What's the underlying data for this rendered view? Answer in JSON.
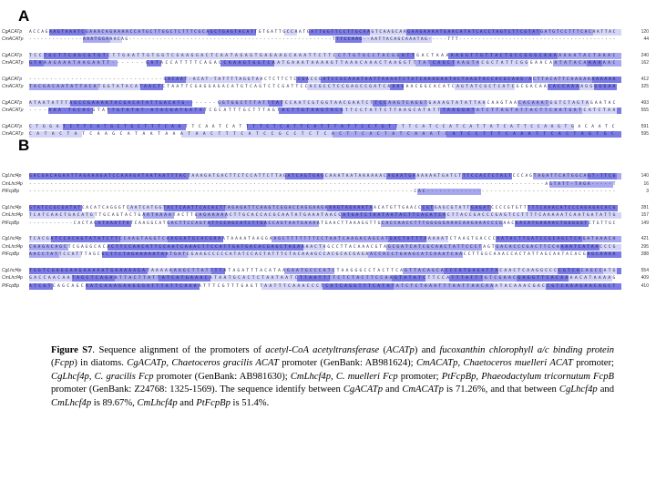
{
  "figure": {
    "panels": [
      {
        "label": "A",
        "groups": [
          {
            "rows": [
              {
                "name": "CgACATp",
                "seq": "ACCAGAAGTAAATCGAAACAGAAAACCATGCTTGGCTCTTTCGCAGCTGAGTACATTGTGATTGCCAATGATTGGTTCCTTGCAAGTCAAGCAAGAAGAAAATGAACATATCACCTAGTCTTCGTATGATGTCCTTTCACAATTAC",
                "num": "120"
              },
              {
                "name": "CmACATp",
                "seq": "--------------AAATGGAAACAG-----------------------------------------------------TTTCCAAG--AATTACAGCAAATAG-----TTT-----------------------------------------",
                "num": "44"
              }
            ]
          },
          {
            "rows": [
              {
                "name": "CgACATp",
                "seq": "TCCTGCTTCAGCGTGTCTTGAATTGTGGTCGAAGGACTCAATAGAGTGAGAAGCAAATTCTTCCTTGTGCCTACGGATTGACTAAAAAGGTTGTTACTGCCGGGCAAAAAAATACTAAAC",
                "num": "240"
              },
              {
                "name": "CmACATp",
                "seq": "GTAAAGAAATAAGAATT-------GATACCATTTTCAGACCAAAGTGGTCAATGAAATAAAAGTTAAACAAACTAAGGTTTATCAGCTAAGTACGCTATTCGGGAACAATATACAAAAAAC",
                "num": "162"
              }
            ]
          },
          {
            "rows": [
              {
                "name": "CgACATp",
                "seq": "--------------------------------GACAAT-ACAT-TATTTTAGGTAACTCTTCTCCGACCGATCCGCAAATAATTAAAATCTATCAAAGAATACTAAGTACCACGCAAG-ACTTACATTCAAGAAAAAAAA",
                "num": "412"
              },
              {
                "name": "CmACATp",
                "seq": "TACGACAATATTACATGGTATACATAACTCTAATTCGAGGAGACATGTCAGTCTCGATTCCACGCCTCCGAGCCGATCAAAGAACGGCACATCAGTATCGCTCATCGCGACAACACCAAAAGGGGGAA",
                "num": "325"
              }
            ]
          },
          {
            "rows": [
              {
                "name": "CgACATp",
                "seq": "ATAATATTTAGCCGAAAATACGACATATTGACATG-------GGTGGCTTTATTTATCCAATCGTGGTAACGAATCTTCCAAGTCAGGTGAAAGTATATTAACAAGTAACACAAATGGTCTAGTAGAATAC",
                "num": "493"
              },
              {
                "name": "CmACATp",
                "seq": "----AAA-TGCACGTATTGTGTAT-ATACGATGATATCGCATTTGCTTTAGTACTTGTAAGTACGTTCCTATTCTTAAGCATATTTAAGGATATCTTAGTATTACTTCAATGATCATCTAA",
                "num": "555"
              }
            ]
          },
          {
            "rows": [
              {
                "name": "CgACATp",
                "seq": "CTGGATCTTCATGCTGCTTTCAATTCAATCATTTTCTCATTCATTTATTCCTGTTTTCATCCATCATTATCATTCCAAGTGACAATC",
                "num": "591"
              },
              {
                "name": "CmACATp",
                "seq": "CATACTATCAAGCATAATAAATAACTTTCATCCGCCTCTCACTTCACTATCAAATCATCCTTTCAAATTCACTAGTGC",
                "num": "595"
              }
            ]
          }
        ]
      },
      {
        "label": "B",
        "groups": [
          {
            "rows": [
              {
                "name": "CgLhcf4p",
                "seq": "GACGACAGAATTAGAAAGATCCAAAGATAATAATTTACTAAAGATGACTTCTCCATTCTTAGATCAGTGAGCAAATAATAAAAAACAGAATGAAAAAATGATCTTTCCACTCTACTCCCAGTAGATTCATGGCAGT-TTCG",
                "num": "140"
              },
              {
                "name": "CmLhcf4p",
                "seq": "--------------------------------------------------------------------------------------------------------------------------AGTATT-TAGA-----T",
                "num": "16"
              },
              {
                "name": "PtFcpBp",
                "seq": "-------------------------------------------------------------------------------------------CAC---------------------------------------------",
                "num": "3"
              }
            ]
          },
          {
            "rows": [
              {
                "name": "CgLhcf4p",
                "seq": "GTATCCGCGATATCACATCAGGGTCAATCATGGTACTCAATTCACACTTAGAGATTCAAGTCGGACCAGGAAGAAAGTAGAAATAACATGTTGAACCCGTGAGCGTATTGAGATCCCCGTGTTTTTCAAACATCCCAGAGACACG",
                "num": "281"
              },
              {
                "name": "CmLhcf4p",
                "seq": "TCATCAACTGACATGTTGCAGTACTGAATAAAATACTTGAGAAAAACTTGCACCACGCAATATGAAATAACCATGATCTAATAATACTTCACATCACTTACCGACCCGAGTCCTTTTCAAAAATCAATGATATTG",
                "num": "157"
              },
              {
                "name": "PtFcpBp",
                "seq": "-----------CACTACATAAATTATCAAGGCATGACTTCCAGTATTCCAGCATCTTGACCAGTAATGAAAATGAACTTAAAGGTTGCACCAACCTTTGGGGGAAACAAGAAACCCGAACGACATGAAAACTGGGGGTCTGTTGC",
                "num": "149"
              }
            ]
          },
          {
            "rows": [
              {
                "name": "CgLhcf4p",
                "seq": "TCACGATCCACAGTATATCTTCCAAGTAGGTCAAGGATGCACGAAATAAAATAAGGAAGCTTTTTTTCCTAATCAAGACAGCATGACTATTTAAAAATCTAAGTGACCCAATACTTGATCCGCAGCTCAGATAAACA",
                "num": "421"
              },
              {
                "name": "CmLhcf4p",
                "seq": "CAAGACAGCTCGAGGCACACTTCCAACATTCCAATCAAACTTCCATTGATGACACGAGCTAGAAAACTAGCCTTACAAACGTAGCGATCATCGCAACTATTCCCTAGTGACACCCGACTTCCAAAATCATAACCCG",
                "num": "295"
              },
              {
                "name": "PtFcpBp",
                "seq": "AACCTATTCCATTTAGCGCTTCTAGAAAAATAATGATCGAAGCCCCCATATCCACTATTTCTACAAAGCCACGCACGAGAACCACCTGAAGCATCAAATCAACCTTGGCAAACCACTATTAGCAATACACGAGCAAAA",
                "num": "288"
              }
            ]
          },
          {
            "rows": [
              {
                "name": "CgLhcf4p",
                "seq": "TGGTCGAGGAAGAAAAATGAAAAAGATAAAAAAAGCTTATTTTATAGATTTACATAAGAATGCCCATCTAAGGGCCTACTTCAGTTACAGCACCCATGAGATTACAACTCAAGGCCCCGTCACAGCCATG",
                "num": "554"
              },
              {
                "name": "CmLhcf4p",
                "seq": "GACCAACAATAGCTCAGAATTACTTATTATCATGAAACATAATGCACTCTAATAATCTTAATTTTCTCTACTTCCAAGTATATCTTCCATTTATTTGTCGAACGAGGTTCACAAAACATAAAAG",
                "num": "409"
              },
              {
                "name": "PtFcpBp",
                "seq": "ATCGTCAGCAGCAATCAAAGAAGGGATTTATTCAAAATTTCGTTTGAGTTAATTTCAAACCCTCATCAGGTTTCATATATCTCTAAATTTAATTAACAAATACAAACGACCGTCAAAGAACAGCT",
                "num": "410"
              }
            ]
          }
        ]
      }
    ],
    "caption": {
      "label": "Figure S7",
      "segments": [
        {
          "t": ". Sequence alignment of the promoters of ",
          "i": false
        },
        {
          "t": "acetyl-CoA acetyltransferase",
          "i": true
        },
        {
          "t": " (",
          "i": false
        },
        {
          "t": "ACATp",
          "i": true
        },
        {
          "t": ") and ",
          "i": false
        },
        {
          "t": "fucoxanthin chlorophyll a/c binding protein",
          "i": true
        },
        {
          "t": " (",
          "i": false
        },
        {
          "t": "Fcpp",
          "i": true
        },
        {
          "t": ") in diatoms. ",
          "i": false
        },
        {
          "t": "CgACATp, Chaetoceros gracilis ACAT",
          "i": true
        },
        {
          "t": " promoter (GenBank: AB981624); ",
          "i": false
        },
        {
          "t": "CmACATp, Chaetoceros muelleri ACAT",
          "i": true
        },
        {
          "t": " promoter; ",
          "i": false
        },
        {
          "t": "CgLhcf4p, C. gracilis Fcp",
          "i": true
        },
        {
          "t": " promoter (GenBank: AB981630); ",
          "i": false
        },
        {
          "t": "CmLhcf4p, C. muelleri Fcp",
          "i": true
        },
        {
          "t": " promoter; ",
          "i": false
        },
        {
          "t": "PtFcpBp, Phaeodactylum tricornutum FcpB",
          "i": true
        },
        {
          "t": " promoter (GenBank: Z24768: 1325-1569). The sequence identify between ",
          "i": false
        },
        {
          "t": "CgACATp",
          "i": true
        },
        {
          "t": " and ",
          "i": false
        },
        {
          "t": "CmACATp",
          "i": true
        },
        {
          "t": " is 71.26%, and that between ",
          "i": false
        },
        {
          "t": "CgLhcf4p",
          "i": true
        },
        {
          "t": " and ",
          "i": false
        },
        {
          "t": "CmLhcf4p",
          "i": true
        },
        {
          "t": " is 89.67%, ",
          "i": false
        },
        {
          "t": "CmLhcf4p",
          "i": true
        },
        {
          "t": " and ",
          "i": false
        },
        {
          "t": "PtFcpBp",
          "i": true
        },
        {
          "t": " is 51.4%.",
          "i": false
        }
      ]
    },
    "colors": {
      "conserved": "#7b7be6",
      "partial": "#a8a8f0",
      "light": "#d4d4f7"
    }
  }
}
